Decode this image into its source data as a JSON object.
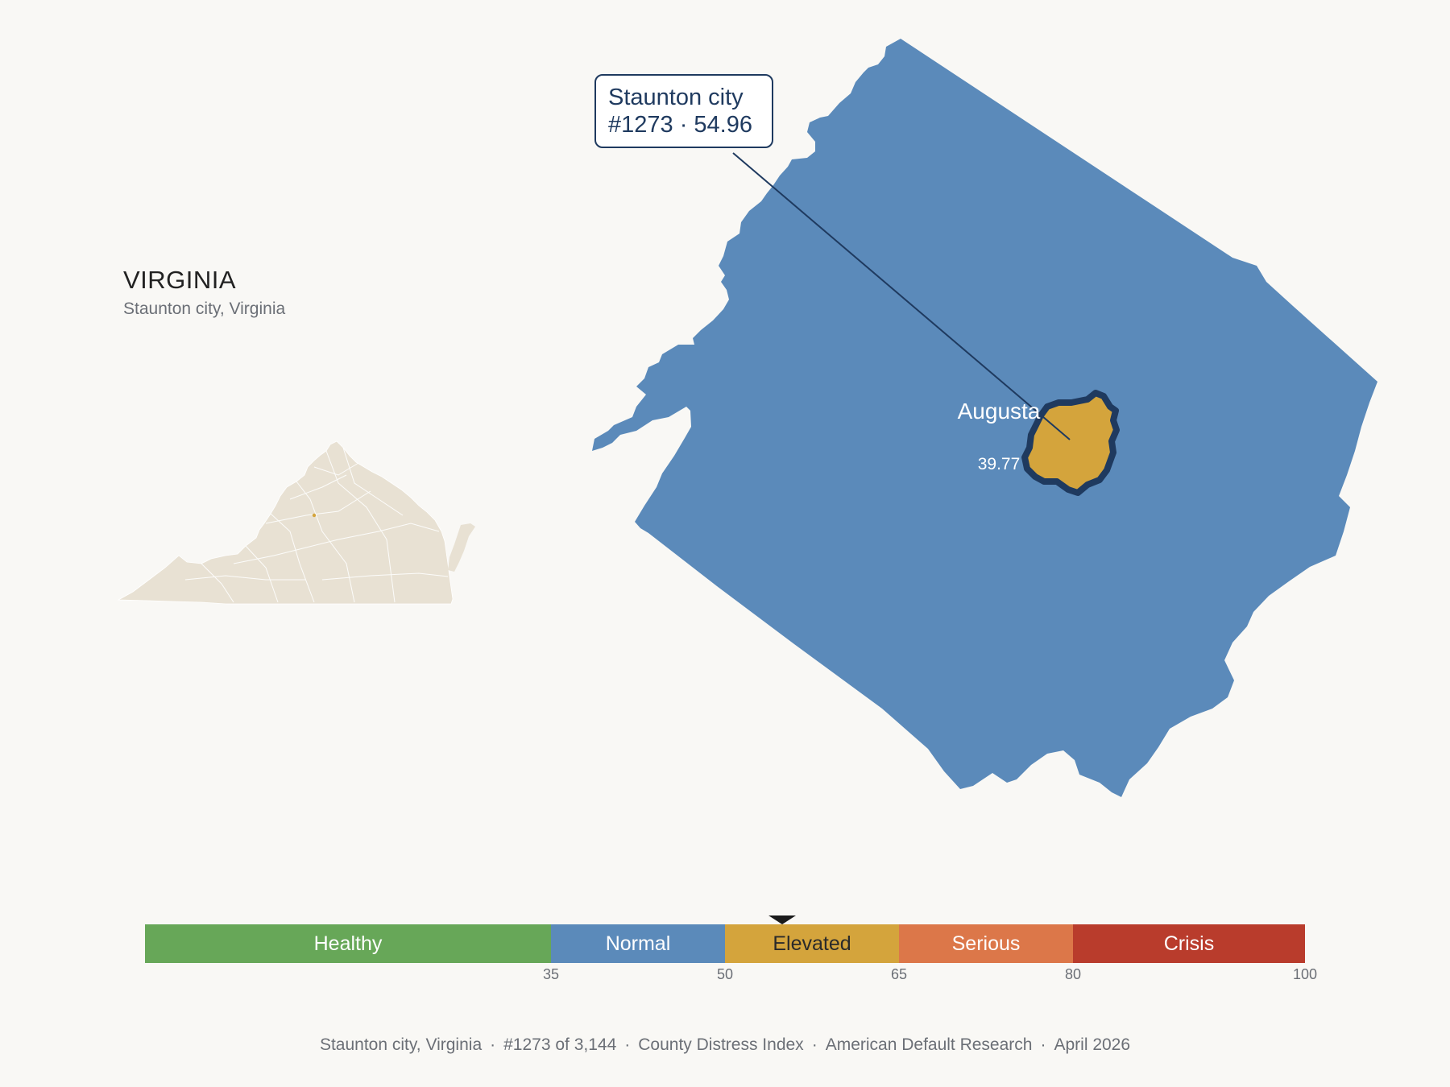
{
  "state": {
    "title": "VIRGINIA",
    "subtitle": "Staunton city, Virginia"
  },
  "callout": {
    "name": "Staunton city",
    "rank_score": "#1273 · 54.96"
  },
  "map": {
    "county_label": "Augusta",
    "county_value": "39.77",
    "colors": {
      "county_fill": "#5b8aba",
      "city_fill": "#d4a43c",
      "city_outline": "#1f3a5f",
      "state_fill": "#e8e1d3",
      "state_highlight": "#d4a43c"
    }
  },
  "scale": {
    "segments": [
      {
        "label": "Healthy",
        "from": 0,
        "to": 35,
        "color": "#67a758"
      },
      {
        "label": "Normal",
        "from": 35,
        "to": 50,
        "color": "#5b8aba"
      },
      {
        "label": "Elevated",
        "from": 50,
        "to": 65,
        "color": "#d4a43c"
      },
      {
        "label": "Serious",
        "from": 65,
        "to": 80,
        "color": "#dc7749"
      },
      {
        "label": "Crisis",
        "from": 80,
        "to": 100,
        "color": "#b93c2c"
      }
    ],
    "ticks": [
      "35",
      "50",
      "65",
      "80",
      "100"
    ],
    "marker_value": 54.96
  },
  "footer": {
    "place": "Staunton city, Virginia",
    "rank": "#1273 of 3,144",
    "index": "County Distress Index",
    "org": "American Default Research",
    "date": "April 2026"
  }
}
